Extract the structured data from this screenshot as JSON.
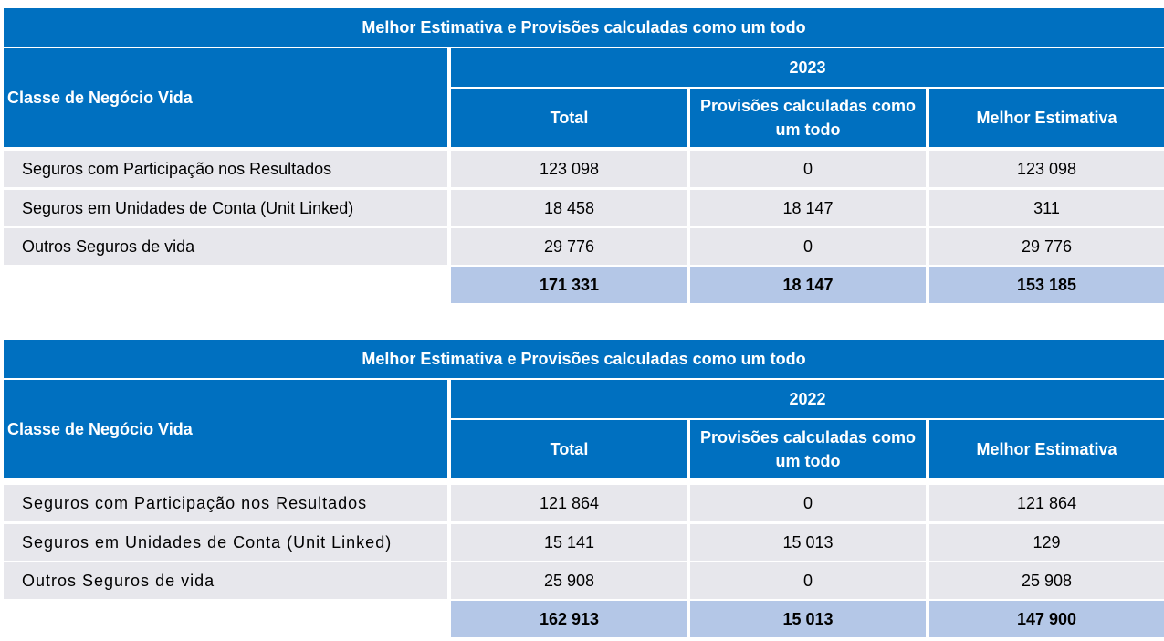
{
  "tables": [
    {
      "title": "Melhor Estimativa e Provisões calculadas como um todo",
      "class_header": "Classe de Negócio Vida",
      "year": "2023",
      "columns": [
        "Total",
        "Provisões calculadas como um todo",
        "Melhor Estimativa"
      ],
      "rows": [
        {
          "label": "Seguros com Participação nos Resultados",
          "values": [
            "123 098",
            "0",
            "123 098"
          ]
        },
        {
          "label": "Seguros em Unidades de Conta (Unit Linked)",
          "values": [
            "18 458",
            "18 147",
            "311"
          ]
        },
        {
          "label": "Outros Seguros de vida",
          "values": [
            "29 776",
            "0",
            "29 776"
          ]
        }
      ],
      "totals": [
        "171 331",
        "18 147",
        "153 185"
      ]
    },
    {
      "title": "Melhor Estimativa e Provisões calculadas como um todo",
      "class_header": "Classe de Negócio Vida",
      "year": "2022",
      "columns": [
        "Total",
        "Provisões calculadas como um todo",
        "Melhor Estimativa"
      ],
      "rows": [
        {
          "label": "Seguros com Participação nos Resultados",
          "values": [
            "121 864",
            "0",
            "121 864"
          ]
        },
        {
          "label": "Seguros em Unidades de Conta (Unit Linked)",
          "values": [
            "15 141",
            "15 013",
            "129"
          ]
        },
        {
          "label": "Outros Seguros de vida",
          "values": [
            "25 908",
            "0",
            "25 908"
          ]
        }
      ],
      "totals": [
        "162 913",
        "15 013",
        "147 900"
      ]
    }
  ],
  "colors": {
    "header_blue": "#0070c0",
    "row_grey": "#e7e7ec",
    "total_blue": "#b4c7e7"
  }
}
